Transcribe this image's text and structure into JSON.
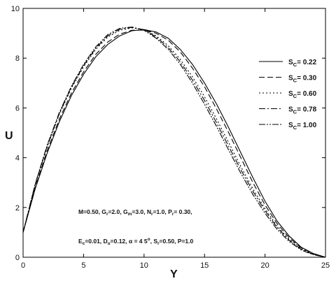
{
  "chart_data": {
    "type": "line",
    "title": "",
    "xlabel": "Y",
    "ylabel": "U",
    "xlim": [
      0,
      25
    ],
    "ylim": [
      0,
      10
    ],
    "xticks": [
      0,
      5,
      10,
      15,
      20,
      25
    ],
    "yticks": [
      0,
      2,
      4,
      6,
      8,
      10
    ],
    "x_tick_labels": [
      "0",
      "5",
      "10",
      "15",
      "20",
      "25"
    ],
    "y_tick_labels": [
      "0",
      "2",
      "4",
      "6",
      "8",
      "10"
    ],
    "grid": false,
    "legend_position": "top-right",
    "legend_prefix": "S",
    "legend_subscript": "C",
    "series": [
      {
        "name": "= 0.22",
        "dash": "solid",
        "x": [
          0,
          1,
          2,
          3,
          4,
          5,
          6,
          7,
          8,
          9,
          10,
          11,
          12,
          13,
          14,
          15,
          16,
          17,
          18,
          19,
          20,
          21,
          22,
          23,
          24,
          25
        ],
        "y": [
          1.0,
          2.75,
          4.2,
          5.45,
          6.5,
          7.35,
          8.05,
          8.55,
          8.9,
          9.1,
          9.15,
          9.05,
          8.8,
          8.35,
          7.75,
          7.0,
          6.15,
          5.2,
          4.2,
          3.2,
          2.25,
          1.45,
          0.85,
          0.4,
          0.15,
          0.0
        ]
      },
      {
        "name": "= 0.30",
        "dash": "8,4",
        "x": [
          0,
          1,
          2,
          3,
          4,
          5,
          6,
          7,
          8,
          9,
          10,
          11,
          12,
          13,
          14,
          15,
          16,
          17,
          18,
          19,
          20,
          21,
          22,
          23,
          24,
          25
        ],
        "y": [
          1.0,
          2.8,
          4.3,
          5.55,
          6.6,
          7.45,
          8.15,
          8.65,
          8.97,
          9.12,
          9.13,
          9.0,
          8.72,
          8.25,
          7.6,
          6.85,
          5.95,
          5.0,
          4.0,
          3.0,
          2.1,
          1.35,
          0.78,
          0.38,
          0.14,
          0.0
        ]
      },
      {
        "name": "= 0.60",
        "dash": "2,3",
        "x": [
          0,
          1,
          2,
          3,
          4,
          5,
          6,
          7,
          8,
          9,
          10,
          11,
          12,
          13,
          14,
          15,
          16,
          17,
          18,
          19,
          20,
          21,
          22,
          23,
          24,
          25
        ],
        "y": [
          1.0,
          2.9,
          4.45,
          5.75,
          6.8,
          7.65,
          8.35,
          8.85,
          9.12,
          9.22,
          9.15,
          8.9,
          8.5,
          7.95,
          7.25,
          6.45,
          5.55,
          4.6,
          3.65,
          2.75,
          1.95,
          1.25,
          0.72,
          0.35,
          0.12,
          0.0
        ]
      },
      {
        "name": "= 0.78",
        "dash": "9,3,2,3",
        "x": [
          0,
          1,
          2,
          3,
          4,
          5,
          6,
          7,
          8,
          9,
          10,
          11,
          12,
          13,
          14,
          15,
          16,
          17,
          18,
          19,
          20,
          21,
          22,
          23,
          24,
          25
        ],
        "y": [
          1.0,
          2.92,
          4.48,
          5.78,
          6.84,
          7.7,
          8.4,
          8.9,
          9.16,
          9.24,
          9.14,
          8.85,
          8.42,
          7.85,
          7.12,
          6.3,
          5.4,
          4.45,
          3.52,
          2.65,
          1.87,
          1.2,
          0.68,
          0.32,
          0.11,
          0.0
        ]
      },
      {
        "name": "= 1.00",
        "dash": "9,2,2,2,2,2",
        "x": [
          0,
          1,
          2,
          3,
          4,
          5,
          6,
          7,
          8,
          9,
          10,
          11,
          12,
          13,
          14,
          15,
          16,
          17,
          18,
          19,
          20,
          21,
          22,
          23,
          24,
          25
        ],
        "y": [
          1.0,
          2.95,
          4.52,
          5.82,
          6.88,
          7.75,
          8.45,
          8.95,
          9.2,
          9.25,
          9.12,
          8.8,
          8.35,
          7.75,
          7.0,
          6.15,
          5.25,
          4.3,
          3.38,
          2.52,
          1.77,
          1.12,
          0.63,
          0.29,
          0.1,
          0.0
        ]
      }
    ],
    "annotations": [
      "M=0.50, G_r=2.0, G_m=3.0, N_r=1.0, P_r= 0.30,",
      "E_c=0.01, D_u=0.12, α = 45°, S_r=0.50, P=1.0"
    ]
  }
}
